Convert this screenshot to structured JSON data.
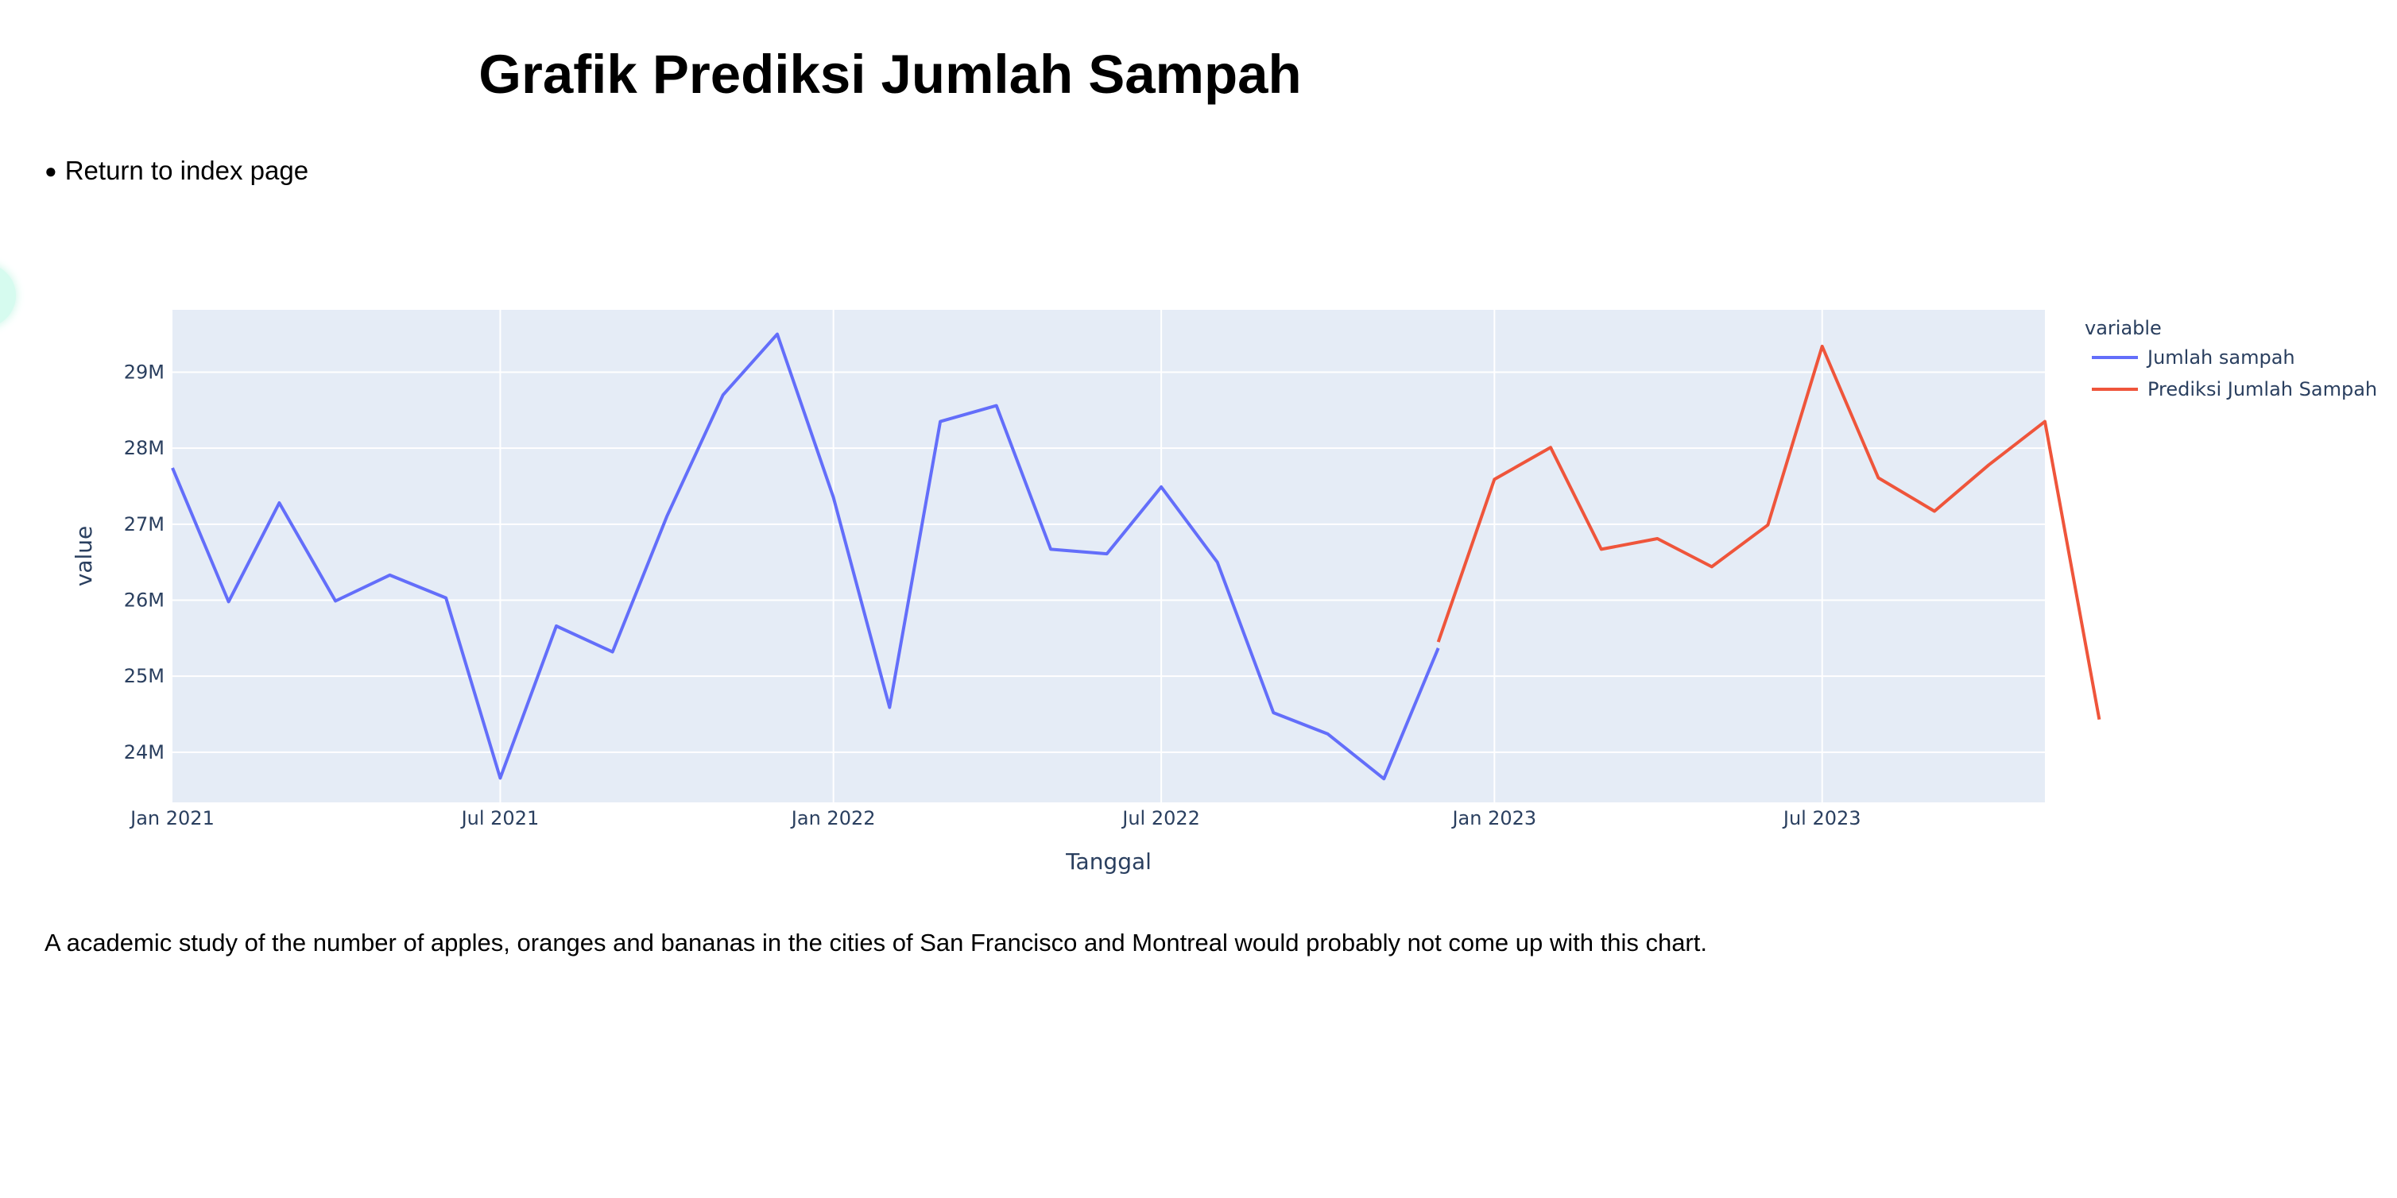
{
  "page": {
    "title": "Grafik Prediksi Jumlah Sampah",
    "nav": [
      {
        "label": "Return to index page"
      }
    ],
    "description": "A academic study of the number of apples, oranges and bananas in the cities of San Francisco and Montreal would probably not come up with this chart."
  },
  "chart_data": {
    "type": "line",
    "xlabel": "Tanggal",
    "ylabel": "value",
    "legend_title": "variable",
    "legend_position": "right",
    "grid": true,
    "x_ticks": [
      "Jan 2021",
      "Jul 2021",
      "Jan 2022",
      "Jul 2022",
      "Jan 2023",
      "Jul 2023"
    ],
    "y_ticks": [
      "24M",
      "25M",
      "26M",
      "27M",
      "28M",
      "29M"
    ],
    "xlim": [
      "2021-01-01",
      "2023-11-01"
    ],
    "ylim": [
      23340000,
      29820000
    ],
    "colors": {
      "plot_bg": "#e5ecf6",
      "grid": "#ffffff",
      "axis_text": "#2a3f5f"
    },
    "series": [
      {
        "name": "Jumlah sampah",
        "color": "#636efa",
        "x": [
          "2021-01-01",
          "2021-02-01",
          "2021-03-01",
          "2021-04-01",
          "2021-05-01",
          "2021-06-01",
          "2021-07-01",
          "2021-08-01",
          "2021-09-01",
          "2021-10-01",
          "2021-11-01",
          "2021-12-01",
          "2022-01-01",
          "2022-02-01",
          "2022-03-01",
          "2022-04-01",
          "2022-05-01",
          "2022-06-01",
          "2022-07-01",
          "2022-08-01",
          "2022-09-01",
          "2022-10-01",
          "2022-11-01",
          "2022-12-01"
        ],
        "values": [
          27740000,
          25980000,
          27280000,
          25990000,
          26330000,
          26030000,
          23660000,
          25660000,
          25320000,
          27100000,
          28700000,
          29500000,
          27350000,
          24590000,
          28350000,
          28560000,
          26670000,
          26610000,
          27490000,
          26500000,
          24520000,
          24240000,
          23650000,
          25370000
        ]
      },
      {
        "name": "Prediksi Jumlah Sampah",
        "color": "#ef553b",
        "x": [
          "2022-12-01",
          "2023-01-01",
          "2023-02-01",
          "2023-03-01",
          "2023-04-01",
          "2023-05-01",
          "2023-06-01",
          "2023-07-01",
          "2023-08-01",
          "2023-09-01",
          "2023-10-01",
          "2023-11-01",
          "2023-12-01"
        ],
        "values": [
          25450000,
          27590000,
          28010000,
          26670000,
          26810000,
          26440000,
          26990000,
          29340000,
          27610000,
          27170000,
          27780000,
          28350000,
          24430000
        ]
      }
    ]
  }
}
